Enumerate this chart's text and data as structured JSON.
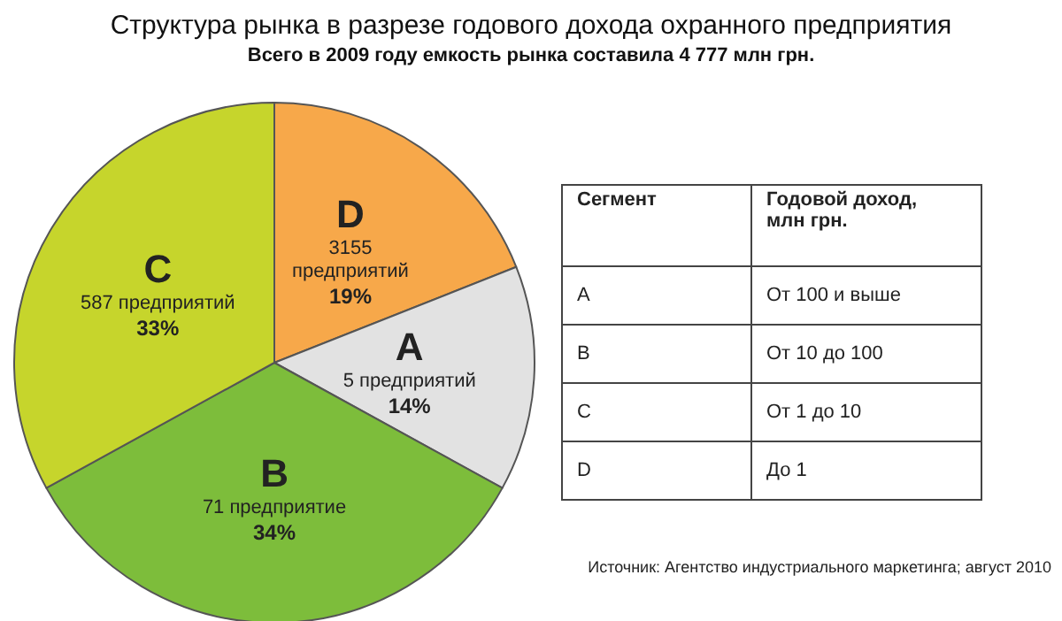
{
  "chart_data": [
    {
      "type": "pie",
      "title": "Структура рынка в разрезе годового дохода охранного предприятия",
      "subtitle": "Всего в 2009 году емкость рынка составила 4 777 млн грн.",
      "categories": [
        "D",
        "A",
        "B",
        "C"
      ],
      "values": [
        19,
        14,
        34,
        33
      ],
      "colors": [
        "#f7a84a",
        "#e2e2e2",
        "#7dbd3b",
        "#c6d52c"
      ],
      "value_labels": [
        "3155\nпредприятий\n19%",
        "5 предприятий\n14%",
        "71 предприятие\n34%",
        "587 предприятий\n33%"
      ],
      "annotations": [
        "Источник: Агентство индустриального маркетинга; август 2010"
      ]
    },
    {
      "type": "other",
      "annotations": [
        "Сегмент",
        "Годовой доход,\nмлн грн.",
        "A",
        "От 100 и выше",
        "B",
        "От 10 до 100",
        "C",
        "От 1 до 10",
        "D",
        "До 1"
      ]
    }
  ]
}
